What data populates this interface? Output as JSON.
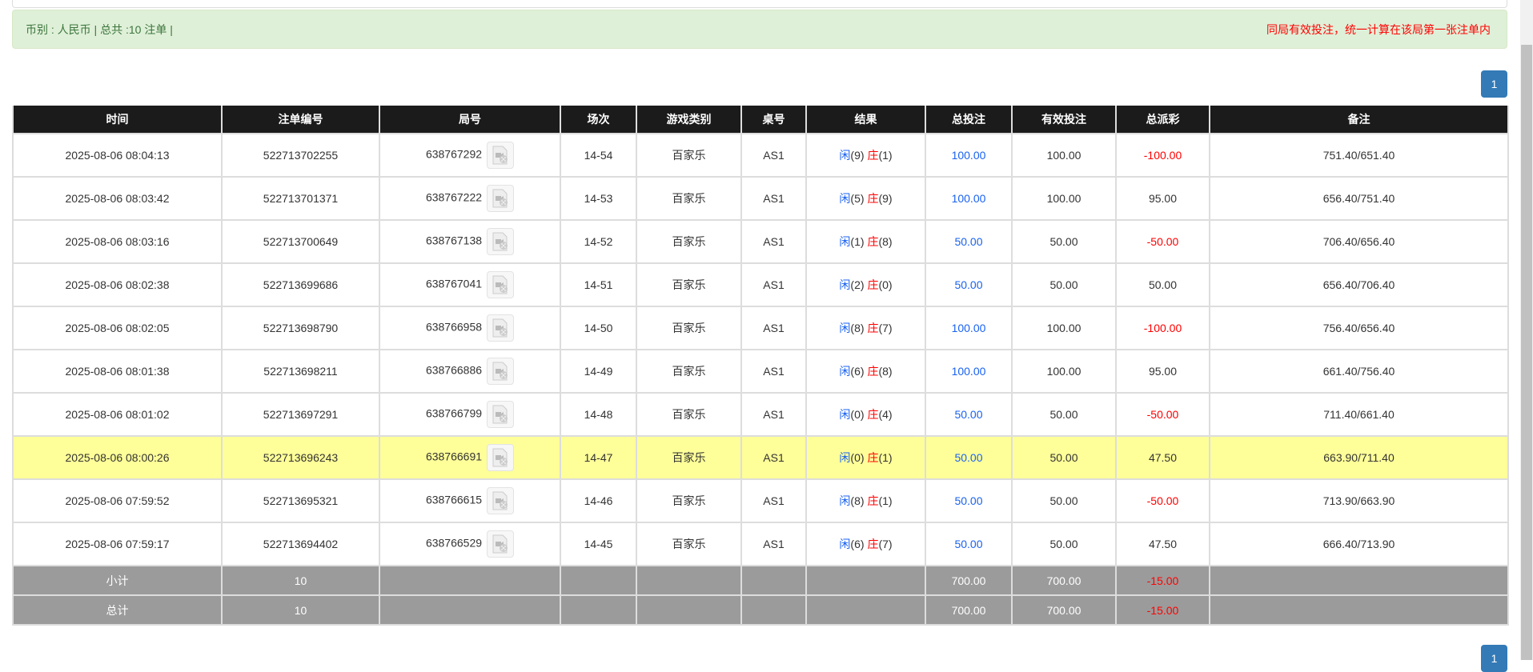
{
  "alert": {
    "summary": "币别 : 人民币 | 总共 :10 注单 |",
    "note": "同局有效投注，统一计算在该局第一张注单内"
  },
  "pagination": {
    "current": "1"
  },
  "colors": {
    "accent": "#337ab7",
    "header": "#1b1b1b",
    "highlight": "#ffff99",
    "negative": "#ff0000",
    "player": "#1a62f0"
  },
  "table": {
    "headers": [
      "时间",
      "注单编号",
      "局号",
      "场次",
      "游戏类别",
      "桌号",
      "结果",
      "总投注",
      "有效投注",
      "总派彩",
      "备注"
    ],
    "rows": [
      {
        "time": "2025-08-06 08:04:13",
        "bet_id": "522713702255",
        "round": "638767292",
        "session": "14-54",
        "game": "百家乐",
        "table": "AS1",
        "player": "闲",
        "player_pts": "(9)",
        "banker": "庄",
        "banker_pts": "(1)",
        "total": "100.00",
        "valid": "100.00",
        "payout": "-100.00",
        "remark": "751.40/651.40"
      },
      {
        "time": "2025-08-06 08:03:42",
        "bet_id": "522713701371",
        "round": "638767222",
        "session": "14-53",
        "game": "百家乐",
        "table": "AS1",
        "player": "闲",
        "player_pts": "(5)",
        "banker": "庄",
        "banker_pts": "(9)",
        "total": "100.00",
        "valid": "100.00",
        "payout": "95.00",
        "remark": "656.40/751.40"
      },
      {
        "time": "2025-08-06 08:03:16",
        "bet_id": "522713700649",
        "round": "638767138",
        "session": "14-52",
        "game": "百家乐",
        "table": "AS1",
        "player": "闲",
        "player_pts": "(1)",
        "banker": "庄",
        "banker_pts": "(8)",
        "total": "50.00",
        "valid": "50.00",
        "payout": "-50.00",
        "remark": "706.40/656.40"
      },
      {
        "time": "2025-08-06 08:02:38",
        "bet_id": "522713699686",
        "round": "638767041",
        "session": "14-51",
        "game": "百家乐",
        "table": "AS1",
        "player": "闲",
        "player_pts": "(2)",
        "banker": "庄",
        "banker_pts": "(0)",
        "total": "50.00",
        "valid": "50.00",
        "payout": "50.00",
        "remark": "656.40/706.40"
      },
      {
        "time": "2025-08-06 08:02:05",
        "bet_id": "522713698790",
        "round": "638766958",
        "session": "14-50",
        "game": "百家乐",
        "table": "AS1",
        "player": "闲",
        "player_pts": "(8)",
        "banker": "庄",
        "banker_pts": "(7)",
        "total": "100.00",
        "valid": "100.00",
        "payout": "-100.00",
        "remark": "756.40/656.40"
      },
      {
        "time": "2025-08-06 08:01:38",
        "bet_id": "522713698211",
        "round": "638766886",
        "session": "14-49",
        "game": "百家乐",
        "table": "AS1",
        "player": "闲",
        "player_pts": "(6)",
        "banker": "庄",
        "banker_pts": "(8)",
        "total": "100.00",
        "valid": "100.00",
        "payout": "95.00",
        "remark": "661.40/756.40"
      },
      {
        "time": "2025-08-06 08:01:02",
        "bet_id": "522713697291",
        "round": "638766799",
        "session": "14-48",
        "game": "百家乐",
        "table": "AS1",
        "player": "闲",
        "player_pts": "(0)",
        "banker": "庄",
        "banker_pts": "(4)",
        "total": "50.00",
        "valid": "50.00",
        "payout": "-50.00",
        "remark": "711.40/661.40"
      },
      {
        "time": "2025-08-06 08:00:26",
        "bet_id": "522713696243",
        "round": "638766691",
        "session": "14-47",
        "game": "百家乐",
        "table": "AS1",
        "player": "闲",
        "player_pts": "(0)",
        "banker": "庄",
        "banker_pts": "(1)",
        "total": "50.00",
        "valid": "50.00",
        "payout": "47.50",
        "remark": "663.90/711.40",
        "highlighted": true
      },
      {
        "time": "2025-08-06 07:59:52",
        "bet_id": "522713695321",
        "round": "638766615",
        "session": "14-46",
        "game": "百家乐",
        "table": "AS1",
        "player": "闲",
        "player_pts": "(8)",
        "banker": "庄",
        "banker_pts": "(1)",
        "total": "50.00",
        "valid": "50.00",
        "payout": "-50.00",
        "remark": "713.90/663.90"
      },
      {
        "time": "2025-08-06 07:59:17",
        "bet_id": "522713694402",
        "round": "638766529",
        "session": "14-45",
        "game": "百家乐",
        "table": "AS1",
        "player": "闲",
        "player_pts": "(6)",
        "banker": "庄",
        "banker_pts": "(7)",
        "total": "50.00",
        "valid": "50.00",
        "payout": "47.50",
        "remark": "666.40/713.90"
      }
    ],
    "subtotal": {
      "label": "小计",
      "count": "10",
      "total": "700.00",
      "valid": "700.00",
      "payout": "-15.00"
    },
    "grandtotal": {
      "label": "总计",
      "count": "10",
      "total": "700.00",
      "valid": "700.00",
      "payout": "-15.00"
    }
  }
}
